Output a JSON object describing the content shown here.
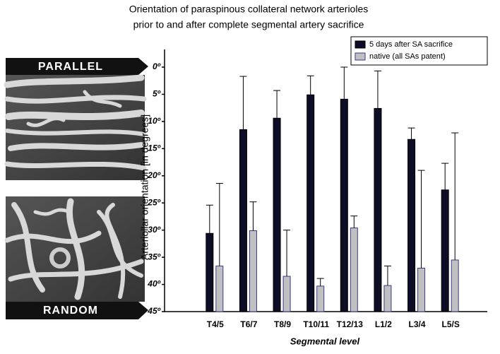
{
  "panels": [
    "PARALLEL",
    "RANDOM"
  ],
  "chart_data": {
    "type": "bar",
    "title": "Orientation of paraspinous collateral network arterioles",
    "subtitle": "prior to and after complete segmental artery sacrifice",
    "x_label": "Segmental level",
    "y_label": "Arteriollar orientation [in degrees]",
    "categories": [
      "T4/5",
      "T6/7",
      "T8/9",
      "T10/11",
      "T12/13",
      "L1/2",
      "L3/4",
      "L5/S"
    ],
    "series": [
      {
        "name": "5 days after SA sacrifice",
        "color": "#0d0d26",
        "edge": "#000000",
        "values": [
          30.6,
          11.5,
          9.4,
          5.1,
          5.9,
          7.6,
          13.3,
          22.6
        ],
        "errors": [
          5.2,
          9.8,
          5.1,
          3.5,
          5.9,
          6.9,
          2.1,
          4.9
        ]
      },
      {
        "name": "native (all SAs patent)",
        "color": "#c0c0c0",
        "edge": "#3a3a8a",
        "values": [
          36.6,
          30.1,
          38.5,
          40.3,
          29.6,
          40.2,
          37.0,
          35.5
        ],
        "errors": [
          15.2,
          5.3,
          8.5,
          1.4,
          2.2,
          3.6,
          18.0,
          23.4
        ]
      }
    ],
    "ylim": [
      0,
      45
    ],
    "y_inverted": true,
    "yticks": [
      {
        "value": 0,
        "label": "0º"
      },
      {
        "value": 5,
        "label": "5º"
      },
      {
        "value": 10,
        "label": "10º"
      },
      {
        "value": 15,
        "label": "15º"
      },
      {
        "value": 20,
        "label": "20º"
      },
      {
        "value": 25,
        "label": "25º"
      },
      {
        "value": 30,
        "label": "30º"
      },
      {
        "value": 35,
        "label": "35º"
      },
      {
        "value": 40,
        "label": "40º"
      },
      {
        "value": 45,
        "label": "45º"
      }
    ],
    "legend": "top-right",
    "grid": false
  }
}
